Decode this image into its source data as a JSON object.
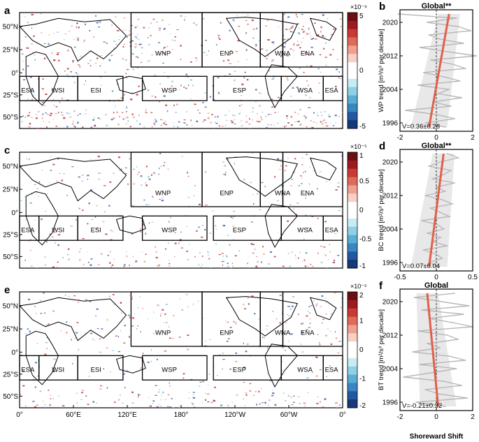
{
  "map_x_ticks": [
    "0°",
    "60°E",
    "120°E",
    "180°",
    "120°W",
    "60°W",
    "0°"
  ],
  "map_y_ticks": [
    "50°N",
    "25°N",
    "0°",
    "25°S",
    "50°S"
  ],
  "regions_north": [
    "WNP",
    "ENP",
    "WNA",
    "ENA"
  ],
  "regions_south": [
    "ESA",
    "WSI",
    "ESI",
    "WSP",
    "ESP",
    "WSA",
    "ESA"
  ],
  "xlabel": "Shoreward Shift",
  "colors": {
    "trend_line": "#e0604a",
    "series_line": "#b8b8b8",
    "ci_band": "#e6e6e6",
    "positive": "#b0202a",
    "negative": "#2a5aa6"
  },
  "chart_data": [
    {
      "type": "line",
      "panel_map": "a",
      "panel_line": "b",
      "title": "Global**",
      "ylabel": "WP trend [m³/s³ per decade]",
      "colorbar_exponent": "×10⁻⁹",
      "colorbar_ticks": [
        "5",
        "0",
        "-5"
      ],
      "colorbar_range": [
        -5,
        5
      ],
      "annotation": "V=0.36±0.28",
      "x_ticks": [
        "-2",
        "0",
        "2"
      ],
      "xlim": [
        -2,
        2
      ],
      "y_ticks": [
        "2020",
        "2012",
        "2004",
        "1996"
      ],
      "ylim": [
        1994,
        2023
      ],
      "x": [
        -2.1,
        1.1,
        -0.5,
        1.2,
        1.9,
        -0.4,
        0.2,
        1.5,
        -0.9,
        0.6,
        2.2,
        -0.3,
        0.9,
        1.6,
        -0.7,
        0.4,
        1.3,
        -1.0,
        0.7,
        0.1,
        1.4,
        -0.2,
        0.8,
        -1.7,
        0.0,
        1.0,
        -0.6,
        0.5
      ],
      "y": [
        2022,
        2021,
        2020,
        2019,
        2018,
        2017,
        2016,
        2015,
        2014,
        2013,
        2012,
        2011,
        2010,
        2009,
        2008,
        2007,
        2006,
        2005,
        2004,
        2003,
        2002,
        2001,
        2000,
        1999,
        1998,
        1997,
        1996,
        1995
      ],
      "trend": [
        [
          -0.4,
          1995
        ],
        [
          0.7,
          2022
        ]
      ]
    },
    {
      "type": "line",
      "panel_map": "c",
      "panel_line": "d",
      "title": "Global**",
      "ylabel": "BC trend [m²/s³ per decade]",
      "colorbar_exponent": "×10⁻⁵",
      "colorbar_ticks": [
        "1",
        "0.5",
        "0",
        "-0.5",
        "-1"
      ],
      "colorbar_range": [
        -1,
        1
      ],
      "annotation": "V=0.07±0.04",
      "x_ticks": [
        "-0.5",
        "0",
        "0.5"
      ],
      "xlim": [
        -0.5,
        0.5
      ],
      "y_ticks": [
        "2020",
        "2012",
        "2004",
        "1996"
      ],
      "ylim": [
        1994,
        2023
      ],
      "x": [
        0.15,
        0.3,
        0.05,
        -0.1,
        0.2,
        0.1,
        -0.05,
        0.25,
        0.0,
        0.12,
        -0.15,
        0.08,
        0.22,
        -0.08,
        0.05,
        0.18,
        -0.2,
        0.02,
        0.1,
        -0.12,
        0.06,
        -0.05,
        0.15,
        -0.18,
        0.0,
        0.08,
        -0.1,
        0.04
      ],
      "y": [
        2022,
        2021,
        2020,
        2019,
        2018,
        2017,
        2016,
        2015,
        2014,
        2013,
        2012,
        2011,
        2010,
        2009,
        2008,
        2007,
        2006,
        2005,
        2004,
        2003,
        2002,
        2001,
        2000,
        1999,
        1998,
        1997,
        1996,
        1995
      ],
      "trend": [
        [
          -0.1,
          1995
        ],
        [
          0.1,
          2022
        ]
      ]
    },
    {
      "type": "line",
      "panel_map": "e",
      "panel_line": "f",
      "title": "Global",
      "ylabel": "BT trend [m²/s³ per decade]",
      "colorbar_exponent": "×10⁻⁵",
      "colorbar_ticks": [
        "2",
        "1",
        "0",
        "-1",
        "-2"
      ],
      "colorbar_range": [
        -2,
        2
      ],
      "annotation": "V=-0.21±0.32",
      "x_ticks": [
        "-2",
        "0",
        "2"
      ],
      "xlim": [
        -2,
        2
      ],
      "y_ticks": [
        "2020",
        "2012",
        "2004",
        "1996"
      ],
      "ylim": [
        1994,
        2023
      ],
      "x": [
        1.0,
        -1.2,
        0.3,
        1.8,
        -0.8,
        1.5,
        -0.4,
        0.9,
        2.0,
        -1.0,
        0.6,
        1.2,
        -0.5,
        0.2,
        -1.3,
        0.7,
        1.6,
        -0.9,
        1.1,
        -0.3,
        -1.8,
        0.4,
        1.4,
        -0.6,
        0.1,
        1.7,
        -1.1,
        0.5
      ],
      "y": [
        2022,
        2021,
        2020,
        2019,
        2018,
        2017,
        2016,
        2015,
        2014,
        2013,
        2012,
        2011,
        2010,
        2009,
        2008,
        2007,
        2006,
        2005,
        2004,
        2003,
        2002,
        2001,
        2000,
        1999,
        1998,
        1997,
        1996,
        1995
      ],
      "trend": [
        [
          0.1,
          1995
        ],
        [
          -0.5,
          2022
        ]
      ]
    }
  ]
}
